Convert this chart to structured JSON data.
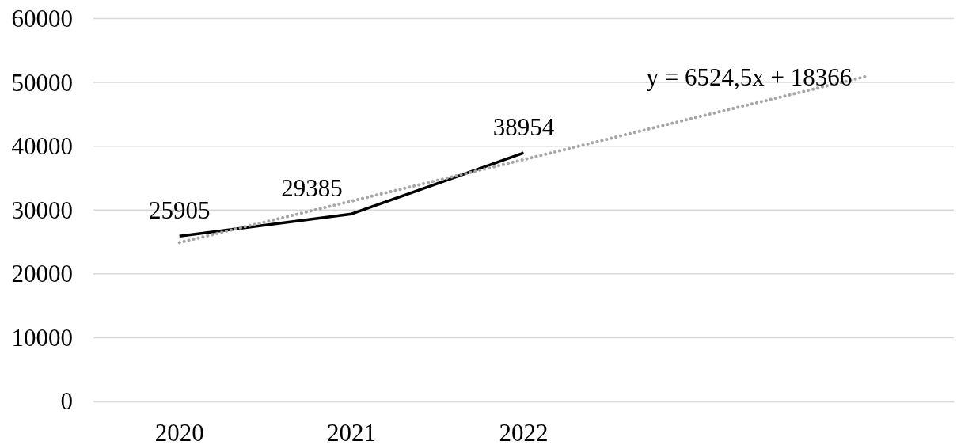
{
  "chart_data": {
    "type": "line",
    "categories": [
      "2020",
      "2021",
      "2022",
      null,
      null
    ],
    "series": [
      {
        "color": "#000000",
        "line_style": "solid",
        "values": [
          25905,
          29385,
          38954,
          null,
          null
        ],
        "value_labels": [
          "25905",
          "29385",
          "38954",
          null,
          null
        ]
      },
      {
        "type": "line",
        "color": "#a6a6a6",
        "line_style": "dotted",
        "values": [
          24900,
          31400,
          37900,
          44500,
          51000
        ]
      }
    ],
    "ylim": [
      0,
      60000
    ],
    "yticks": [
      0,
      10000,
      20000,
      30000,
      40000,
      50000,
      60000
    ],
    "grid": "y",
    "annotations": [
      "y = 6524,5x + 18366"
    ]
  }
}
